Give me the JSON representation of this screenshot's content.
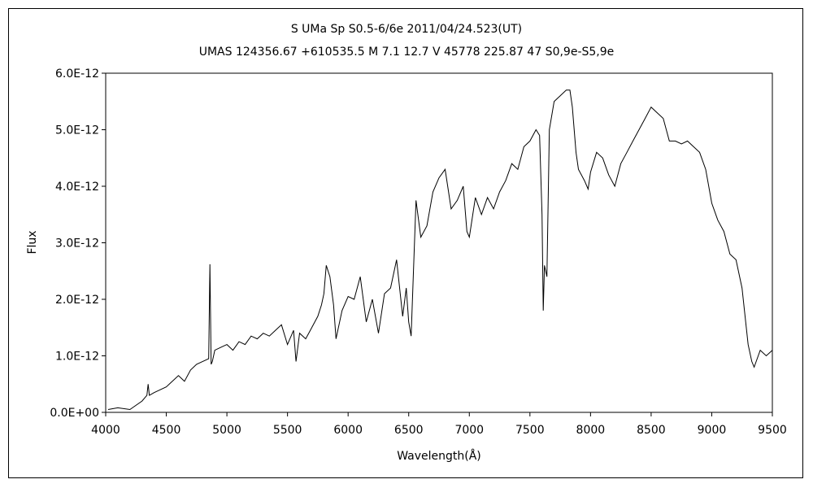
{
  "chart_data": {
    "type": "line",
    "title": "S UMa   Sp S0.5-6/6e   2011/04/24.523(UT)",
    "subtitle": "UMAS 124356.67 +610535.5 M 7.1 12.7 V 45778 225.87 47 S0,9e-S5,9e",
    "xlabel": "Wavelength(Å)",
    "ylabel": "Flux",
    "xlim": [
      4000,
      9500
    ],
    "ylim": [
      0,
      6e-12
    ],
    "x_ticks": [
      "4000",
      "4500",
      "5000",
      "5500",
      "6000",
      "6500",
      "7000",
      "7500",
      "8000",
      "8500",
      "9000",
      "9500"
    ],
    "y_ticks": [
      "0.0E+00",
      "1.0E-12",
      "2.0E-12",
      "3.0E-12",
      "4.0E-12",
      "5.0E-12",
      "6.0E-12"
    ],
    "grid": false,
    "legend": "none",
    "line_color": "#000000",
    "series": [
      {
        "x": [
          4020,
          4100,
          4200,
          4300,
          4340,
          4350,
          4360,
          4400,
          4500,
          4550,
          4600,
          4650,
          4700,
          4750,
          4800,
          4850,
          4860,
          4870,
          4880,
          4900,
          4950,
          5000,
          5050,
          5100,
          5150,
          5200,
          5250,
          5300,
          5350,
          5400,
          5450,
          5500,
          5550,
          5570,
          5600,
          5650,
          5700,
          5750,
          5780,
          5800,
          5820,
          5850,
          5880,
          5900,
          5950,
          6000,
          6050,
          6100,
          6150,
          6200,
          6250,
          6300,
          6350,
          6400,
          6450,
          6480,
          6500,
          6520,
          6560,
          6600,
          6650,
          6700,
          6750,
          6800,
          6850,
          6900,
          6950,
          6980,
          7000,
          7050,
          7100,
          7150,
          7200,
          7250,
          7300,
          7350,
          7400,
          7450,
          7500,
          7550,
          7580,
          7600,
          7610,
          7620,
          7640,
          7660,
          7700,
          7750,
          7800,
          7830,
          7850,
          7880,
          7900,
          7950,
          7980,
          8000,
          8050,
          8100,
          8150,
          8200,
          8250,
          8300,
          8350,
          8400,
          8450,
          8500,
          8550,
          8600,
          8650,
          8700,
          8750,
          8800,
          8850,
          8900,
          8950,
          9000,
          9050,
          9100,
          9150,
          9200,
          9250,
          9300,
          9330,
          9350,
          9400,
          9450,
          9500
        ],
        "y": [
          5e-14,
          8e-14,
          5e-14,
          2e-13,
          3e-13,
          5e-13,
          3e-13,
          3.5e-13,
          4.5e-13,
          5.5e-13,
          6.5e-13,
          5.5e-13,
          7.5e-13,
          8.5e-13,
          9e-13,
          9.5e-13,
          2.62e-12,
          8.5e-13,
          9e-13,
          1.1e-12,
          1.15e-12,
          1.2e-12,
          1.1e-12,
          1.25e-12,
          1.2e-12,
          1.35e-12,
          1.3e-12,
          1.4e-12,
          1.35e-12,
          1.45e-12,
          1.55e-12,
          1.2e-12,
          1.45e-12,
          9e-13,
          1.4e-12,
          1.3e-12,
          1.5e-12,
          1.7e-12,
          1.9e-12,
          2.1e-12,
          2.6e-12,
          2.4e-12,
          1.9e-12,
          1.3e-12,
          1.8e-12,
          2.05e-12,
          2e-12,
          2.4e-12,
          1.6e-12,
          2e-12,
          1.4e-12,
          2.1e-12,
          2.2e-12,
          2.7e-12,
          1.7e-12,
          2.2e-12,
          1.6e-12,
          1.35e-12,
          3.75e-12,
          3.1e-12,
          3.3e-12,
          3.9e-12,
          4.15e-12,
          4.3e-12,
          3.6e-12,
          3.75e-12,
          4e-12,
          3.2e-12,
          3.1e-12,
          3.8e-12,
          3.5e-12,
          3.8e-12,
          3.6e-12,
          3.9e-12,
          4.1e-12,
          4.4e-12,
          4.3e-12,
          4.7e-12,
          4.8e-12,
          5e-12,
          4.9e-12,
          3.5e-12,
          1.8e-12,
          2.6e-12,
          2.4e-12,
          5e-12,
          5.5e-12,
          5.6e-12,
          5.7e-12,
          5.7e-12,
          5.4e-12,
          4.6e-12,
          4.3e-12,
          4.1e-12,
          3.95e-12,
          4.25e-12,
          4.6e-12,
          4.5e-12,
          4.2e-12,
          4e-12,
          4.4e-12,
          4.6e-12,
          4.8e-12,
          5e-12,
          5.2e-12,
          5.4e-12,
          5.3e-12,
          5.2e-12,
          4.8e-12,
          4.8e-12,
          4.75e-12,
          4.8e-12,
          4.7e-12,
          4.6e-12,
          4.3e-12,
          3.7e-12,
          3.4e-12,
          3.2e-12,
          2.8e-12,
          2.7e-12,
          2.2e-12,
          1.2e-12,
          9e-13,
          8e-13,
          1.1e-12,
          1e-12,
          1.1e-12
        ]
      }
    ]
  }
}
